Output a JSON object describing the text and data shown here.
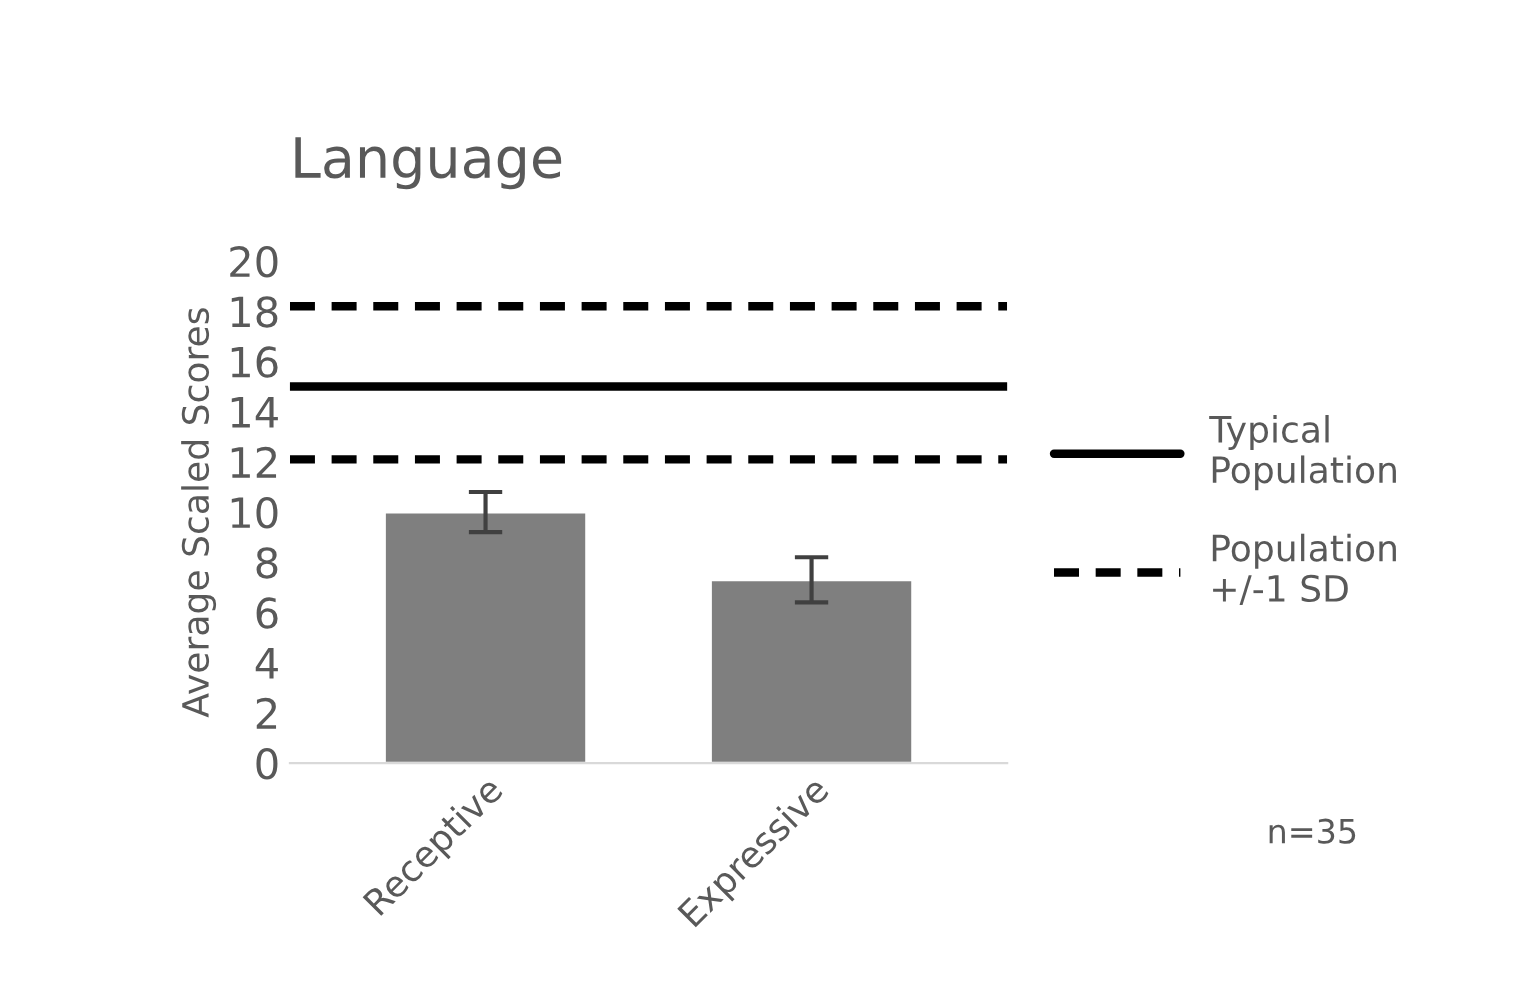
{
  "chart_data": {
    "type": "bar",
    "title": "Language",
    "ylabel": "Average Scaled Scores",
    "categories": [
      "Receptive",
      "Expressive"
    ],
    "values": [
      10,
      7.3
    ],
    "errors": [
      0.8,
      0.9
    ],
    "color": "#7f7f7f",
    "ylim": [
      0,
      20
    ],
    "yticks": [
      0,
      2,
      4,
      6,
      8,
      10,
      12,
      14,
      16,
      18,
      20
    ],
    "grid": false,
    "ref_lines": [
      {
        "axis": "y",
        "value": 15,
        "label": "Typical Population",
        "color": "#000000",
        "line_style": "solid"
      },
      {
        "axis": "y",
        "value": 18.2,
        "label": "Population +/-1 SD",
        "color": "#000000",
        "line_style": "dashed"
      },
      {
        "axis": "y",
        "value": 12.1,
        "label": null,
        "color": "#000000",
        "line_style": "dashed"
      }
    ],
    "legend": "right",
    "annotations": [
      "n=35"
    ]
  }
}
